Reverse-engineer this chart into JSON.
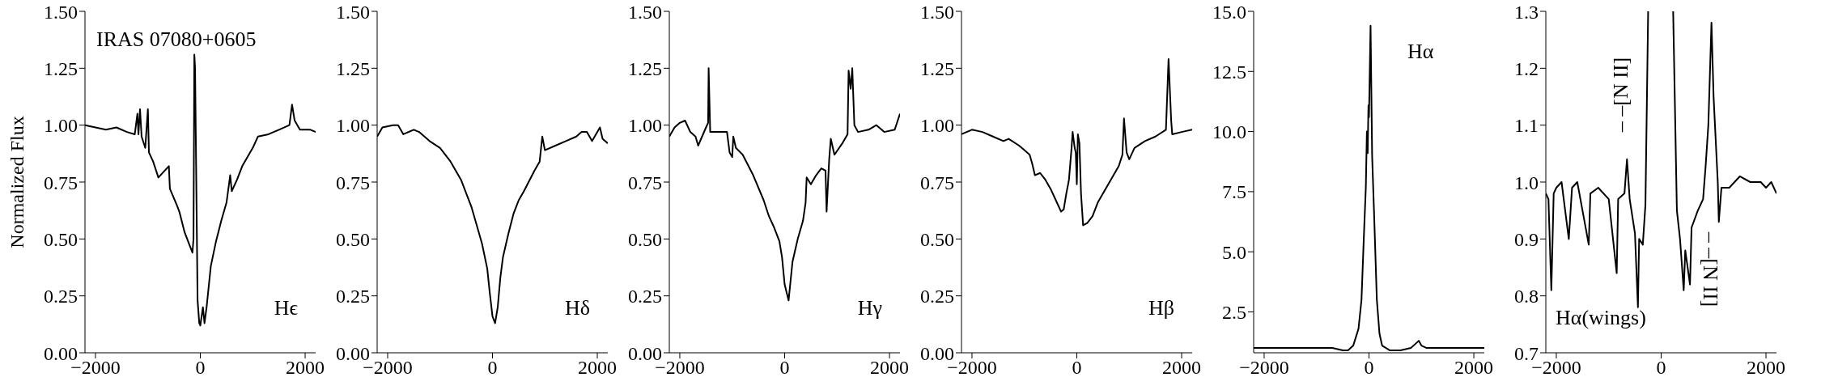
{
  "chart_data": [
    {
      "type": "line",
      "title": "IRAS 07080+0605",
      "ylabel": "Normalized  Flux",
      "annotations": [
        "Hϵ"
      ],
      "x": [
        -2200,
        -2000,
        -1800,
        -1600,
        -1400,
        -1250,
        -1200,
        -1180,
        -1150,
        -1120,
        -1050,
        -1000,
        -980,
        -900,
        -800,
        -600,
        -580,
        -450,
        -400,
        -300,
        -200,
        -150,
        -130,
        -114,
        -100,
        -52,
        -20,
        0,
        50,
        80,
        120,
        200,
        300,
        400,
        500,
        570,
        600,
        700,
        800,
        1000,
        1100,
        1300,
        1500,
        1700,
        1750,
        1800,
        1900,
        2100,
        2200
      ],
      "series": [
        {
          "color": "#000000",
          "values": [
            1.0,
            0.99,
            0.98,
            0.99,
            0.97,
            0.96,
            1.05,
            0.96,
            1.07,
            0.95,
            0.9,
            1.07,
            0.88,
            0.84,
            0.77,
            0.82,
            0.72,
            0.65,
            0.62,
            0.53,
            0.47,
            0.44,
            0.5,
            1.31,
            1.25,
            0.23,
            0.13,
            0.12,
            0.2,
            0.13,
            0.2,
            0.38,
            0.49,
            0.58,
            0.66,
            0.78,
            0.71,
            0.76,
            0.82,
            0.9,
            0.95,
            0.96,
            0.98,
            1.0,
            1.09,
            1.02,
            0.98,
            0.98,
            0.97
          ]
        }
      ],
      "xlim": [
        -2200,
        2200
      ],
      "xticks": [
        -2000,
        0,
        2000
      ],
      "ylim": [
        0,
        1.5
      ],
      "yticks": [
        {
          "value": 0,
          "label": "0.00"
        },
        {
          "value": 0.25,
          "label": "0.25"
        },
        {
          "value": 0.5,
          "label": "0.50"
        },
        {
          "value": 0.75,
          "label": "0.75"
        },
        {
          "value": 1,
          "label": "1.00"
        },
        {
          "value": 1.25,
          "label": "1.25"
        },
        {
          "value": 1.5,
          "label": "1.50"
        }
      ],
      "line_style": "solid"
    },
    {
      "type": "line",
      "annotations": [
        "Hδ"
      ],
      "x": [
        -2200,
        -2100,
        -1900,
        -1800,
        -1700,
        -1500,
        -1400,
        -1200,
        -1000,
        -800,
        -600,
        -500,
        -400,
        -300,
        -200,
        -100,
        -50,
        0,
        50,
        100,
        150,
        200,
        300,
        400,
        500,
        600,
        800,
        900,
        950,
        1000,
        1200,
        1400,
        1600,
        1700,
        1800,
        1900,
        2050,
        2100,
        2200
      ],
      "series": [
        {
          "color": "#000000",
          "values": [
            0.95,
            0.99,
            1.0,
            1.0,
            0.96,
            0.98,
            0.97,
            0.93,
            0.9,
            0.84,
            0.76,
            0.7,
            0.64,
            0.56,
            0.48,
            0.37,
            0.26,
            0.16,
            0.13,
            0.2,
            0.33,
            0.42,
            0.52,
            0.61,
            0.67,
            0.71,
            0.8,
            0.84,
            0.95,
            0.89,
            0.91,
            0.93,
            0.95,
            0.97,
            0.97,
            0.93,
            0.99,
            0.94,
            0.92
          ]
        }
      ],
      "xlim": [
        -2200,
        2200
      ],
      "xticks": [
        -2000,
        0,
        2000
      ],
      "ylim": [
        0,
        1.5
      ],
      "yticks": [
        {
          "value": 0,
          "label": "0.00"
        },
        {
          "value": 0.25,
          "label": "0.25"
        },
        {
          "value": 0.5,
          "label": "0.50"
        },
        {
          "value": 0.75,
          "label": "0.75"
        },
        {
          "value": 1,
          "label": "1.00"
        },
        {
          "value": 1.25,
          "label": "1.25"
        },
        {
          "value": 1.5,
          "label": "1.50"
        }
      ],
      "line_style": "solid"
    },
    {
      "type": "line",
      "annotations": [
        "Hγ"
      ],
      "x": [
        -2200,
        -2100,
        -2000,
        -1900,
        -1800,
        -1700,
        -1650,
        -1500,
        -1460,
        -1450,
        -1420,
        -1300,
        -1100,
        -1050,
        -1000,
        -980,
        -930,
        -800,
        -600,
        -400,
        -300,
        -200,
        -100,
        -50,
        0,
        75,
        150,
        250,
        350,
        400,
        420,
        500,
        600,
        700,
        780,
        800,
        850,
        880,
        950,
        1100,
        1200,
        1220,
        1260,
        1290,
        1330,
        1400,
        1600,
        1750,
        1900,
        2100,
        2200
      ],
      "series": [
        {
          "color": "#000000",
          "values": [
            0.95,
            0.99,
            1.01,
            1.02,
            0.97,
            0.95,
            0.91,
            0.99,
            1.01,
            1.25,
            0.97,
            0.97,
            0.97,
            0.88,
            0.86,
            0.95,
            0.9,
            0.87,
            0.78,
            0.67,
            0.6,
            0.55,
            0.49,
            0.42,
            0.3,
            0.23,
            0.4,
            0.5,
            0.58,
            0.66,
            0.77,
            0.74,
            0.78,
            0.81,
            0.8,
            0.62,
            0.85,
            0.94,
            0.87,
            0.92,
            0.96,
            1.24,
            1.16,
            1.25,
            1.0,
            0.97,
            0.98,
            1.0,
            0.97,
            0.98,
            1.05
          ]
        }
      ],
      "xlim": [
        -2200,
        2200
      ],
      "xticks": [
        -2000,
        0,
        2000
      ],
      "ylim": [
        0,
        1.5
      ],
      "yticks": [
        {
          "value": 0,
          "label": "0.00"
        },
        {
          "value": 0.25,
          "label": "0.25"
        },
        {
          "value": 0.5,
          "label": "0.50"
        },
        {
          "value": 0.75,
          "label": "0.75"
        },
        {
          "value": 1,
          "label": "1.00"
        },
        {
          "value": 1.25,
          "label": "1.25"
        },
        {
          "value": 1.5,
          "label": "1.50"
        }
      ],
      "line_style": "solid"
    },
    {
      "type": "line",
      "annotations": [
        "Hβ"
      ],
      "x": [
        -2200,
        -2000,
        -1800,
        -1600,
        -1400,
        -1300,
        -1100,
        -1000,
        -900,
        -850,
        -800,
        -700,
        -600,
        -500,
        -400,
        -300,
        -250,
        -200,
        -150,
        -100,
        -80,
        -40,
        -20,
        0,
        20,
        50,
        80,
        120,
        200,
        300,
        400,
        600,
        800,
        870,
        900,
        950,
        1000,
        1100,
        1300,
        1500,
        1700,
        1750,
        1800,
        1820,
        2000,
        2200
      ],
      "series": [
        {
          "color": "#000000",
          "values": [
            0.96,
            0.98,
            0.97,
            0.95,
            0.93,
            0.94,
            0.91,
            0.89,
            0.87,
            0.83,
            0.78,
            0.79,
            0.76,
            0.72,
            0.67,
            0.62,
            0.63,
            0.7,
            0.76,
            0.9,
            0.97,
            0.9,
            0.88,
            0.74,
            0.96,
            0.92,
            0.7,
            0.56,
            0.57,
            0.6,
            0.66,
            0.74,
            0.82,
            0.87,
            1.03,
            0.88,
            0.85,
            0.9,
            0.93,
            0.95,
            0.98,
            1.29,
            1.02,
            0.96,
            0.97,
            0.98
          ]
        }
      ],
      "xlim": [
        -2200,
        2200
      ],
      "xticks": [
        -2000,
        0,
        2000
      ],
      "ylim": [
        0,
        1.5
      ],
      "yticks": [
        {
          "value": 0,
          "label": "0.00"
        },
        {
          "value": 0.25,
          "label": "0.25"
        },
        {
          "value": 0.5,
          "label": "0.50"
        },
        {
          "value": 0.75,
          "label": "0.75"
        },
        {
          "value": 1,
          "label": "1.00"
        },
        {
          "value": 1.25,
          "label": "1.25"
        },
        {
          "value": 1.5,
          "label": "1.50"
        }
      ],
      "line_style": "solid"
    },
    {
      "type": "line",
      "annotations": [
        "Hα"
      ],
      "x": [
        -2200,
        -800,
        -700,
        -500,
        -400,
        -300,
        -200,
        -143,
        -100,
        -60,
        -40,
        -25,
        -10,
        0,
        30,
        60,
        100,
        150,
        200,
        250,
        400,
        600,
        800,
        900,
        950,
        1000,
        1100,
        2200
      ],
      "series": [
        {
          "color": "#000000",
          "values": [
            1.0,
            1.0,
            1.0,
            0.9,
            0.9,
            1.1,
            1.8,
            3.0,
            5.5,
            7.7,
            10.0,
            9.1,
            11.1,
            10.6,
            14.4,
            9.0,
            6.4,
            3.0,
            1.6,
            1.1,
            0.9,
            0.9,
            1.0,
            1.2,
            1.3,
            1.1,
            1.0,
            1.0
          ]
        }
      ],
      "xlim": [
        -2200,
        2200
      ],
      "xticks": [
        -2000,
        0,
        2000
      ],
      "ylim": [
        0.8,
        15
      ],
      "yticks": [
        {
          "value": 2.5,
          "label": "2.5"
        },
        {
          "value": 5,
          "label": "5.0"
        },
        {
          "value": 7.5,
          "label": "7.5"
        },
        {
          "value": 10,
          "label": "10.0"
        },
        {
          "value": 12.5,
          "label": "12.5"
        },
        {
          "value": 15,
          "label": "15.0"
        }
      ],
      "line_style": "solid"
    },
    {
      "type": "line",
      "annotations": [
        "Hα(wings)",
        "– –[N II]",
        "– –[N II]"
      ],
      "x": [
        -2200,
        -2150,
        -2095,
        -2050,
        -2000,
        -1900,
        -1762,
        -1700,
        -1600,
        -1381,
        -1350,
        -1200,
        -1000,
        -848,
        -820,
        -700,
        -652,
        -600,
        -500,
        -443,
        -420,
        -350,
        -300,
        -248,
        0,
        229,
        300,
        360,
        430,
        460,
        550,
        580,
        700,
        800,
        850,
        900,
        960,
        1000,
        1080,
        1100,
        1150,
        1300,
        1500,
        1700,
        1900,
        2000,
        2100,
        2200
      ],
      "series": [
        {
          "color": "#000000",
          "values": [
            0.98,
            0.97,
            0.81,
            0.98,
            0.99,
            1.0,
            0.9,
            0.99,
            1.0,
            0.89,
            0.98,
            0.99,
            0.97,
            0.84,
            0.97,
            0.98,
            1.04,
            0.97,
            0.91,
            0.78,
            0.9,
            0.89,
            0.96,
            1.3,
            null,
            1.3,
            0.95,
            0.9,
            0.81,
            0.88,
            0.82,
            0.92,
            0.95,
            0.97,
            1.03,
            1.1,
            1.28,
            1.15,
            1.0,
            0.93,
            0.99,
            0.99,
            1.01,
            1.0,
            1.0,
            0.99,
            1.0,
            0.98
          ]
        }
      ],
      "xlim": [
        -2200,
        2200
      ],
      "xticks": [
        -2000,
        0,
        2000
      ],
      "ylim": [
        0.7,
        1.3
      ],
      "yticks": [
        {
          "value": 0.7,
          "label": "0.7"
        },
        {
          "value": 0.8,
          "label": "0.8"
        },
        {
          "value": 0.9,
          "label": "0.9"
        },
        {
          "value": 1,
          "label": "1.0"
        },
        {
          "value": 1.1,
          "label": "1.1"
        },
        {
          "value": 1.2,
          "label": "1.2"
        },
        {
          "value": 1.3,
          "label": "1.3"
        }
      ],
      "line_style": "solid"
    }
  ]
}
